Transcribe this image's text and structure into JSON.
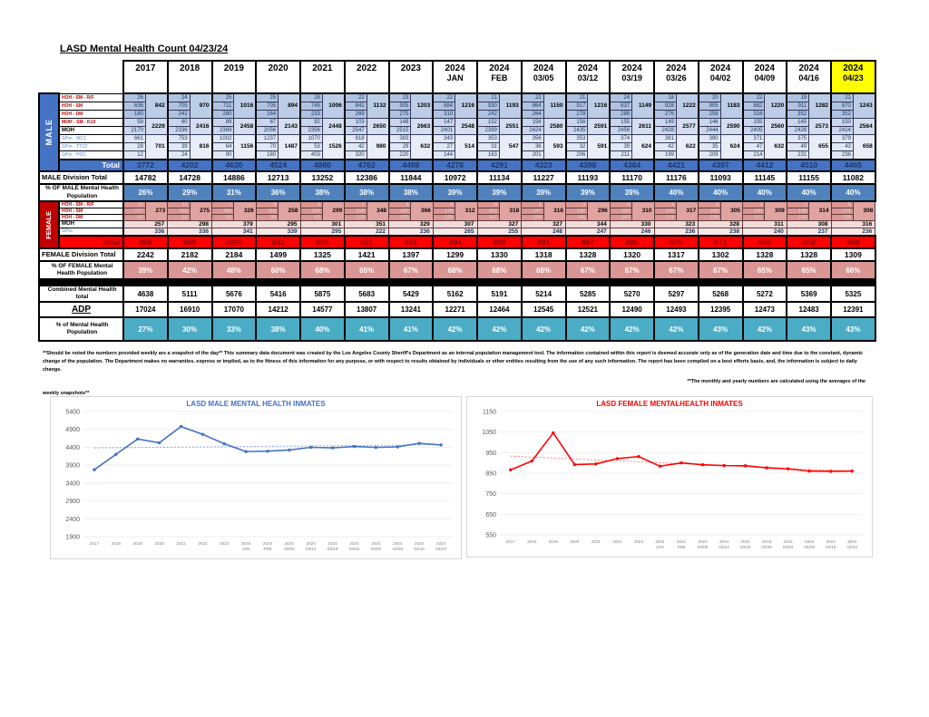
{
  "title": "LASD Mental Health Count 04/23/24",
  "colors": {
    "male_blue": "#4472C4",
    "male_light": "#B8CCE4",
    "female_red": "#C00000",
    "female_pink": "#D99694",
    "female_light": "#F2DCDB",
    "total_red": "#FF0000",
    "teal": "#4BACC6",
    "highlight_yellow": "#FFFF00"
  },
  "table": {
    "columns": [
      {
        "year": "2017"
      },
      {
        "year": "2018"
      },
      {
        "year": "2019"
      },
      {
        "year": "2020"
      },
      {
        "year": "2021"
      },
      {
        "year": "2022"
      },
      {
        "year": "2023"
      },
      {
        "year": "2024",
        "sub": "JAN"
      },
      {
        "year": "2024",
        "sub": "FEB"
      },
      {
        "year": "2024",
        "sub": "03/05"
      },
      {
        "year": "2024",
        "sub": "03/12"
      },
      {
        "year": "2024",
        "sub": "03/19"
      },
      {
        "year": "2024",
        "sub": "03/26"
      },
      {
        "year": "2024",
        "sub": "04/02"
      },
      {
        "year": "2024",
        "sub": "04/09"
      },
      {
        "year": "2024",
        "sub": "04/16"
      },
      {
        "year": "2024",
        "sub": "04/23",
        "highlight": true
      }
    ],
    "male": {
      "band_label": "MALE",
      "labels": {
        "hoh_rf": "HOH - SM - R/F",
        "hoh_sm": "HOH - SM",
        "hoh_dm": "HOH - DM",
        "moh_k10": "MOH - SM - K10",
        "moh": "MOH",
        "gp_mcj": "GPm - MCJ",
        "gp_ttcf": "GPm - TTCF",
        "gp_poc": "GPm - POC"
      },
      "hoh_rf": [
        26,
        24,
        25,
        25,
        28,
        22,
        23,
        22,
        21,
        22,
        21,
        24,
        18,
        20,
        22,
        19,
        21
      ],
      "hoh_sm": [
        636,
        705,
        711,
        705,
        745,
        841,
        905,
        884,
        930,
        864,
        917,
        837,
        928,
        905,
        882,
        911,
        870
      ],
      "hoh_dm": [
        180,
        241,
        280,
        164,
        233,
        269,
        275,
        310,
        242,
        264,
        278,
        288,
        276,
        258,
        316,
        352,
        352
      ],
      "hoh_subtotal": [
        842,
        970,
        1016,
        894,
        1006,
        1132,
        1203,
        1216,
        1193,
        1150,
        1216,
        1149,
        1222,
        1183,
        1220,
        1282,
        1243
      ],
      "moh_k10": [
        59,
        80,
        89,
        87,
        92,
        103,
        148,
        147,
        152,
        156,
        156,
        155,
        149,
        146,
        155,
        145,
        150
      ],
      "moh": [
        2170,
        2336,
        2369,
        2056,
        2356,
        2547,
        2515,
        2401,
        2399,
        2424,
        2435,
        2456,
        2428,
        2444,
        2405,
        2428,
        2414
      ],
      "moh_subtotal": [
        2229,
        2416,
        2458,
        2143,
        2448,
        2650,
        2663,
        2548,
        2551,
        2580,
        2591,
        2611,
        2577,
        2590,
        2560,
        2573,
        2564
      ],
      "gp_mcj": [
        661,
        753,
        1002,
        1237,
        1070,
        618,
        383,
        343,
        353,
        356,
        353,
        374,
        381,
        380,
        371,
        375,
        379
      ],
      "gp_ttcf": [
        28,
        39,
        64,
        70,
        53,
        42,
        29,
        27,
        31,
        36,
        32,
        39,
        42,
        35,
        47,
        49,
        43
      ],
      "gp_poc": [
        12,
        24,
        90,
        180,
        403,
        320,
        220,
        144,
        163,
        201,
        206,
        211,
        199,
        209,
        214,
        231,
        236
      ],
      "gp_subtotal": [
        701,
        816,
        1156,
        1487,
        1526,
        980,
        632,
        514,
        547,
        593,
        591,
        624,
        622,
        624,
        632,
        655,
        658
      ],
      "total_label": "Total",
      "total": [
        3772,
        4202,
        4630,
        4524,
        4980,
        4762,
        4498,
        4278,
        4291,
        4323,
        4398,
        4384,
        4421,
        4397,
        4412,
        4510,
        4465
      ],
      "division_label": "MALE Division Total",
      "division_total": [
        14782,
        14728,
        14886,
        12713,
        13252,
        12386,
        11844,
        10972,
        11134,
        11227,
        11193,
        11170,
        11176,
        11093,
        11145,
        11155,
        11082
      ],
      "pct_label": "% OF MALE Mental Health Population",
      "pct": [
        "26%",
        "29%",
        "31%",
        "36%",
        "38%",
        "38%",
        "38%",
        "39%",
        "39%",
        "39%",
        "39%",
        "39%",
        "40%",
        "40%",
        "40%",
        "40%",
        "40%"
      ]
    },
    "female": {
      "band_label": "FEMALE",
      "labels": {
        "hoh_rf": "HOH - SM - R/F",
        "hoh_sm": "HOH - SM",
        "hoh_dm": "HOH - DM",
        "moh": "MOH",
        "gpm": "GPm"
      },
      "hoh_rf": [
        13,
        11,
        7,
        3,
        4,
        7,
        4,
        4,
        4,
        3,
        3,
        4,
        4,
        4,
        3,
        7,
        6
      ],
      "hoh_sm": [
        217,
        212,
        230,
        219,
        232,
        218,
        187,
        179,
        167,
        147,
        147,
        159,
        139,
        143,
        149,
        145,
        172
      ],
      "hoh_dm": [
        43,
        52,
        89,
        36,
        63,
        123,
        175,
        129,
        147,
        166,
        146,
        147,
        174,
        158,
        157,
        162,
        130
      ],
      "hoh_subtotal": [
        273,
        275,
        326,
        258,
        299,
        348,
        366,
        312,
        318,
        316,
        296,
        310,
        317,
        305,
        309,
        314,
        308
      ],
      "moh": [
        257,
        298,
        379,
        295,
        301,
        351,
        329,
        307,
        327,
        327,
        344,
        330,
        323,
        328,
        311,
        308,
        316
      ],
      "gpm": [
        336,
        336,
        341,
        339,
        295,
        222,
        236,
        265,
        255,
        248,
        247,
        246,
        236,
        238,
        240,
        237,
        236
      ],
      "total_label": "Total",
      "total": [
        866,
        909,
        1046,
        892,
        895,
        921,
        931,
        884,
        900,
        891,
        887,
        886,
        876,
        871,
        860,
        859,
        860
      ],
      "division_label": "FEMALE Division Total",
      "division_total": [
        2242,
        2182,
        2184,
        1499,
        1325,
        1421,
        1397,
        1299,
        1330,
        1318,
        1328,
        1320,
        1317,
        1302,
        1328,
        1328,
        1309
      ],
      "pct_label": "% OF FEMALE Mental Health Population",
      "pct": [
        "39%",
        "42%",
        "48%",
        "60%",
        "68%",
        "65%",
        "67%",
        "68%",
        "68%",
        "68%",
        "67%",
        "67%",
        "67%",
        "67%",
        "65%",
        "65%",
        "66%"
      ]
    },
    "combined": {
      "label": "Combined Mental Health total",
      "values": [
        4638,
        5111,
        5676,
        5416,
        5875,
        5683,
        5429,
        5162,
        5191,
        5214,
        5285,
        5270,
        5297,
        5268,
        5272,
        5369,
        5325
      ]
    },
    "adp": {
      "label": "ADP",
      "values": [
        17024,
        16910,
        17070,
        14212,
        14577,
        13807,
        13241,
        12271,
        12464,
        12545,
        12521,
        12490,
        12493,
        12395,
        12473,
        12483,
        12391
      ]
    },
    "pct_total": {
      "label": "% of Mental Health Population",
      "values": [
        "27%",
        "30%",
        "33%",
        "38%",
        "40%",
        "41%",
        "41%",
        "42%",
        "42%",
        "42%",
        "42%",
        "42%",
        "42%",
        "43%",
        "42%",
        "43%",
        "43%"
      ]
    }
  },
  "notes": {
    "disclaimer": "**Should be noted the numbers provided weekly are a snapshot of the day**  This summary data document was created by the Los Angeles County Sheriff's Department as an internal population management tool.  The information contained within this report is deemed accurate only as of the generation date and time due to the constant, dynamic change of the population.  The Department makes no warranties, express or implied, as to the fitness of this information for any purpose, or with respect to results obtained by individuals or other entities resulting from the use of any such information.  The report has been compiled on a best efforts basis, and, the information is subject to daily change.",
    "averages_note": "**The monthly and yearly numbers are calculated using the averages of the",
    "weekly_note": "weekly snapshots**"
  },
  "chart_data": [
    {
      "type": "line",
      "title": "LASD MALE MENTAL HEALTH INMATES",
      "title_color": "#4472C4",
      "line_color": "#4472C4",
      "trend_color": "#8FAADC",
      "categories": [
        "2017",
        "2018",
        "2019",
        "2020",
        "2021",
        "2022",
        "2023",
        "2024|JAN",
        "2024|FEB",
        "2024|03/05",
        "2024|03/12",
        "2024|03/19",
        "2024|03/26",
        "2024|04/02",
        "2024|04/09",
        "2024|04/16",
        "2024|04/23"
      ],
      "values": [
        3772,
        4202,
        4630,
        4524,
        4980,
        4762,
        4498,
        4278,
        4291,
        4323,
        4398,
        4384,
        4421,
        4397,
        4412,
        4510,
        4465
      ],
      "ylim": [
        1900,
        5400
      ],
      "ytick_step": 500,
      "grid": true,
      "legend": false
    },
    {
      "type": "line",
      "title": "LASD FEMALE MENTALHEALTH INMATES",
      "title_color": "#FF0000",
      "line_color": "#FF0000",
      "trend_color": "#FF8080",
      "categories": [
        "2017",
        "2018",
        "2019",
        "2020",
        "2021",
        "2022",
        "2023",
        "2024|JAN",
        "2024|FEB",
        "2024|03/05",
        "2024|03/12",
        "2024|03/19",
        "2024|03/26",
        "2024|04/02",
        "2024|04/09",
        "2024|04/16",
        "2024|04/23"
      ],
      "values": [
        866,
        909,
        1046,
        892,
        895,
        921,
        931,
        884,
        900,
        891,
        887,
        886,
        876,
        871,
        860,
        859,
        860
      ],
      "ylim": [
        550,
        1150
      ],
      "ytick_step": 100,
      "grid": true,
      "legend": false
    }
  ]
}
